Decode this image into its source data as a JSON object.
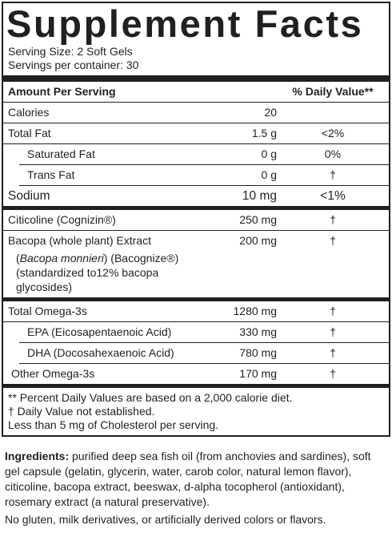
{
  "title": "Supplement Facts",
  "serving_size": "Serving Size: 2 Soft Gels",
  "servings_per_container": "Servings per container: 30",
  "header": {
    "amount": "Amount Per Serving",
    "dv": "% Daily Value**"
  },
  "groups": [
    [
      {
        "name": "Calories",
        "amount": "20"
      },
      {
        "name": "Total Fat",
        "amount": "1.5 g",
        "dv": "<2%",
        "subrows": [
          {
            "name": "Saturated Fat",
            "amount": "0 g",
            "dv": "0%"
          },
          {
            "name": "Trans Fat",
            "amount": "0 g",
            "dv": "†"
          }
        ]
      },
      {
        "name": "Sodium",
        "amount": "10 mg",
        "dv": "<1%"
      }
    ],
    [
      {
        "name": "Citicoline (Cognizin®)",
        "amount": "250 mg",
        "dv": "†"
      },
      {
        "name": "Bacopa (whole plant) Extract",
        "amount": "200 mg",
        "dv": "†",
        "details": [
          "(Bacopa monnieri) (Bacognize®)",
          "(standardized to12% bacopa glycosides)"
        ]
      }
    ],
    [
      {
        "name": "Total Omega-3s",
        "amount": "1280 mg",
        "dv": "†",
        "subrows": [
          {
            "name": "EPA (Eicosapentaenoic Acid)",
            "amount": "330 mg",
            "dv": "†"
          },
          {
            "name": "DHA (Docosahexaenoic Acid)",
            "amount": "780 mg",
            "dv": "†"
          },
          {
            "name": "Other Omega-3s",
            "amount": "170 mg",
            "dv": "†"
          }
        ]
      }
    ]
  ],
  "footnotes": [
    "** Percent Daily Values are based on a 2,000 calorie diet.",
    "†  Daily Value not established.",
    "Less than 5 mg of Cholesterol per serving."
  ],
  "ingredients": {
    "label": "Ingredients:",
    "text": " purified deep sea fish oil (from anchovies and sardines), soft gel capsule (gelatin, glycerin, water, carob color, natural lemon flavor), citicoline, bacopa extract, beeswax, d-alpha tocopherol (antioxidant), rosemary extract (a natural preservative)."
  },
  "statement": "No gluten, milk derivatives, or artificially derived colors or flavors."
}
